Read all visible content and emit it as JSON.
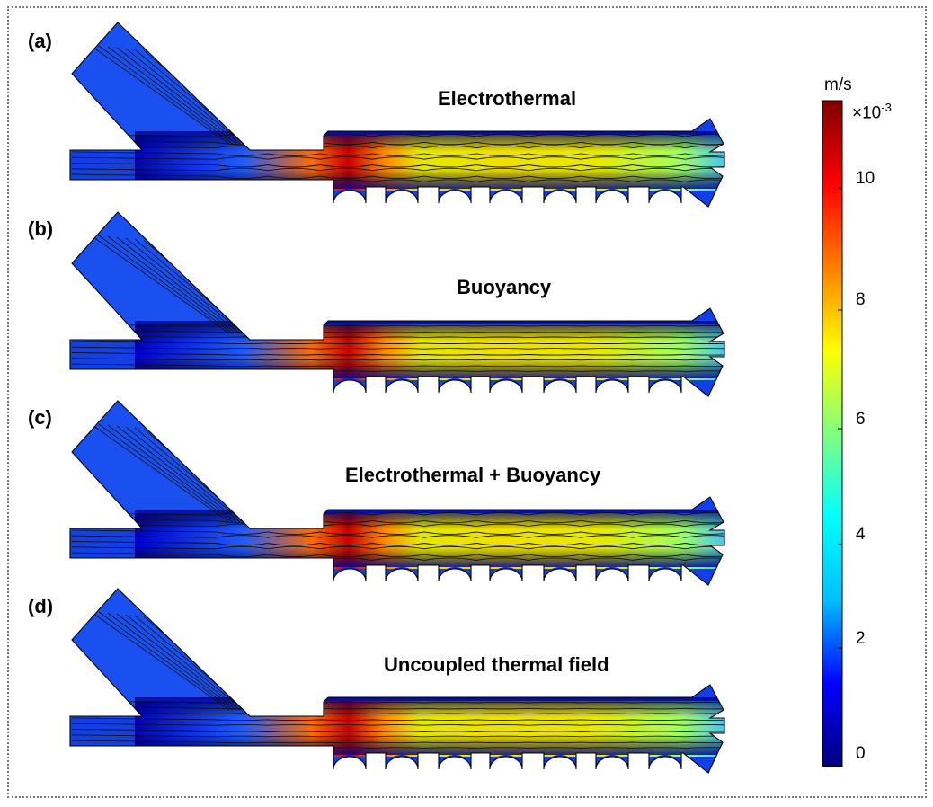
{
  "panels": [
    {
      "letter": "(a)",
      "title": "Electrothermal",
      "pattern": "wavy"
    },
    {
      "letter": "(b)",
      "title": "Buoyancy",
      "pattern": "straight"
    },
    {
      "letter": "(c)",
      "title": "Electrothermal + Buoyancy",
      "pattern": "wavy"
    },
    {
      "letter": "(d)",
      "title": "Uncoupled thermal field",
      "pattern": "straight"
    }
  ],
  "colorbar": {
    "unit": "m/s",
    "exponent_prefix": "×10",
    "exponent": "-3",
    "ticks": [
      "0",
      "2",
      "4",
      "6",
      "8",
      "10"
    ],
    "max_value": 11.2,
    "colormap": "rainbow",
    "colors": [
      "#00007f",
      "#0000ff",
      "#00bfff",
      "#00ffff",
      "#7fff7f",
      "#ffff00",
      "#ff7f00",
      "#ff0000",
      "#7f0000"
    ]
  }
}
